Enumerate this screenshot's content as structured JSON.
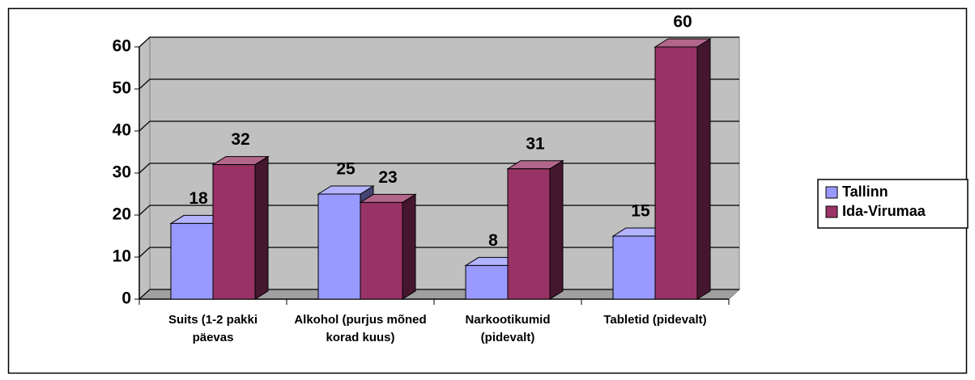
{
  "chart_data": {
    "type": "bar3d",
    "categories": [
      "Suits (1-2 pakki päevas",
      "Alkohol (purjus mõned korad kuus)",
      "Narkootikumid (pidevalt)",
      "Tabletid (pidevalt)"
    ],
    "series": [
      {
        "name": "Tallinn",
        "color": "#9999ff",
        "values": [
          18,
          25,
          8,
          15
        ]
      },
      {
        "name": "Ida-Virumaa",
        "color": "#993366",
        "values": [
          32,
          23,
          31,
          60
        ]
      }
    ],
    "ylim": [
      0,
      60
    ],
    "yticks": [
      0,
      10,
      20,
      30,
      40,
      50,
      60
    ],
    "grid": true,
    "legend": "right"
  }
}
